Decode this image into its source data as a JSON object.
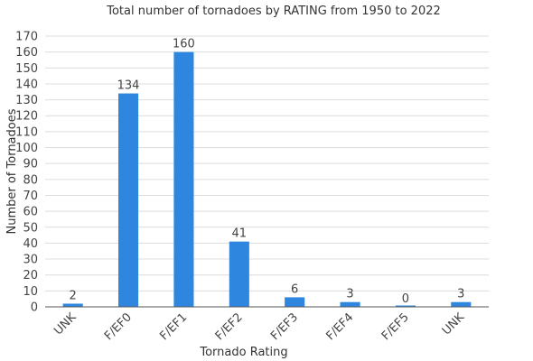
{
  "chart_data": {
    "type": "bar",
    "title": "Total number of tornadoes by RATING from 1950 to 2022",
    "xlabel": "Tornado Rating",
    "ylabel": "Number of Tornadoes",
    "categories": [
      "UNK",
      "F/EF0",
      "F/EF1",
      "F/EF2",
      "F/EF3",
      "F/EF4",
      "F/EF5",
      "UNK"
    ],
    "values": [
      2,
      134,
      160,
      41,
      6,
      3,
      0,
      3
    ],
    "data_labels": [
      "2",
      "134",
      "160",
      "41",
      "6",
      "3",
      "0",
      "3"
    ],
    "ylim": [
      0,
      170
    ],
    "yticks": [
      0,
      10,
      20,
      30,
      40,
      50,
      60,
      70,
      80,
      90,
      100,
      110,
      120,
      130,
      140,
      150,
      160,
      170
    ],
    "grid": true,
    "legend": "none",
    "bar_color": "#2e86de"
  }
}
